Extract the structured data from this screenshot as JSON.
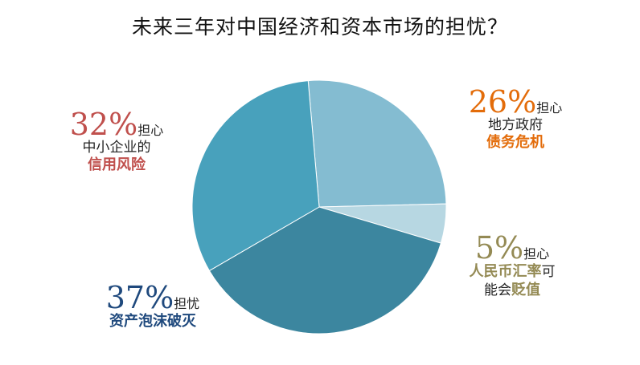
{
  "chart_data": {
    "type": "pie",
    "title": "未来三年对中国经济和资本市场的担忧？",
    "slices": [
      {
        "key": "gov",
        "value": 26,
        "pct_label": "26%",
        "worry_label": "担心",
        "line1": "地方政府",
        "highlight": "债务危机",
        "color": "#84bcd1",
        "text_color": "#e36c0a"
      },
      {
        "key": "rmb",
        "value": 5,
        "pct_label": "5%",
        "worry_label": "担心",
        "line1_a": "人民币汇率",
        "line1_b": "可",
        "line2_a": "能会",
        "line2_b": "贬值",
        "color": "#b7d7e2",
        "text_color": "#948a54"
      },
      {
        "key": "asset",
        "value": 37,
        "pct_label": "37%",
        "worry_label": "担忧",
        "highlight": "资产泡沫破灭",
        "color": "#3c869f",
        "text_color": "#1f497d"
      },
      {
        "key": "sme",
        "value": 32,
        "pct_label": "32%",
        "worry_label": "担心",
        "line1": "中小企业的",
        "highlight": "信用风险",
        "color": "#48a1bc",
        "text_color": "#c0504d"
      }
    ]
  }
}
